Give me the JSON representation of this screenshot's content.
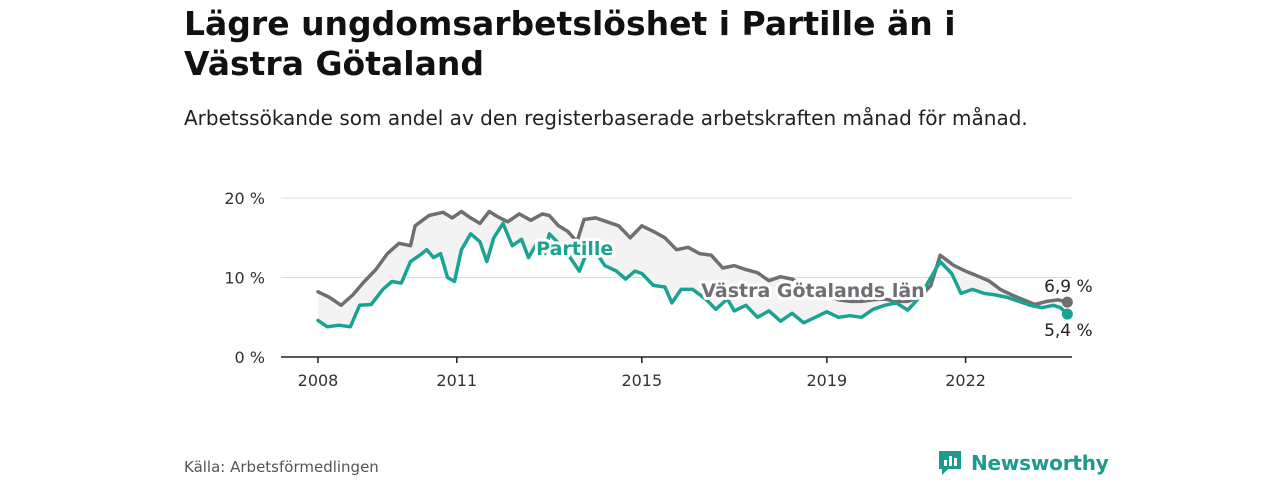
{
  "title": "Lägre ungdomsarbetslöshet i Partille än i Västra Götaland",
  "subtitle": "Arbetssökande som andel av den registerbaserade arbetskraften månad för månad.",
  "source": "Källa: Arbetsförmedlingen",
  "brand": {
    "name": "Newsworthy",
    "icon": "newsworthy-logo-icon",
    "color": "#1c9a8c"
  },
  "chart_data": {
    "type": "line",
    "ylim": [
      0,
      20
    ],
    "yticks": [
      0,
      10,
      20
    ],
    "ytick_labels": [
      "0 %",
      "10 %",
      "20 %"
    ],
    "xlim": [
      2007.2,
      2024.3
    ],
    "xticks": [
      2008,
      2011,
      2015,
      2019,
      2022
    ],
    "xtick_labels": [
      "2008",
      "2011",
      "2015",
      "2019",
      "2022"
    ],
    "series": [
      {
        "name": "Västra Götalands län",
        "color": "#6e6e73",
        "end_label": "6,9 %",
        "points": [
          [
            2008.0,
            8.2
          ],
          [
            2008.25,
            7.5
          ],
          [
            2008.5,
            6.5
          ],
          [
            2008.75,
            7.8
          ],
          [
            2009.0,
            9.5
          ],
          [
            2009.25,
            11.0
          ],
          [
            2009.5,
            13.0
          ],
          [
            2009.75,
            14.3
          ],
          [
            2010.0,
            14.0
          ],
          [
            2010.1,
            16.5
          ],
          [
            2010.4,
            17.8
          ],
          [
            2010.7,
            18.2
          ],
          [
            2010.9,
            17.5
          ],
          [
            2011.1,
            18.3
          ],
          [
            2011.3,
            17.5
          ],
          [
            2011.5,
            16.8
          ],
          [
            2011.7,
            18.3
          ],
          [
            2011.9,
            17.6
          ],
          [
            2012.1,
            17.0
          ],
          [
            2012.35,
            18.0
          ],
          [
            2012.6,
            17.2
          ],
          [
            2012.85,
            18.0
          ],
          [
            2013.0,
            17.8
          ],
          [
            2013.2,
            16.5
          ],
          [
            2013.4,
            15.8
          ],
          [
            2013.6,
            14.5
          ],
          [
            2013.75,
            17.3
          ],
          [
            2014.0,
            17.5
          ],
          [
            2014.25,
            17.0
          ],
          [
            2014.5,
            16.5
          ],
          [
            2014.75,
            15.0
          ],
          [
            2015.0,
            16.5
          ],
          [
            2015.25,
            15.8
          ],
          [
            2015.5,
            15.0
          ],
          [
            2015.75,
            13.5
          ],
          [
            2016.0,
            13.8
          ],
          [
            2016.25,
            13.0
          ],
          [
            2016.5,
            12.8
          ],
          [
            2016.75,
            11.2
          ],
          [
            2017.0,
            11.5
          ],
          [
            2017.25,
            11.0
          ],
          [
            2017.5,
            10.6
          ],
          [
            2017.75,
            9.6
          ],
          [
            2018.0,
            10.1
          ],
          [
            2018.25,
            9.8
          ],
          [
            2018.5,
            9.0
          ],
          [
            2018.75,
            8.5
          ],
          [
            2019.0,
            8.0
          ],
          [
            2019.25,
            7.2
          ],
          [
            2019.5,
            7.0
          ],
          [
            2019.75,
            7.0
          ],
          [
            2020.0,
            7.2
          ],
          [
            2020.25,
            7.3
          ],
          [
            2020.5,
            7.0
          ],
          [
            2020.75,
            7.0
          ],
          [
            2021.0,
            7.5
          ],
          [
            2021.25,
            9.0
          ],
          [
            2021.45,
            12.8
          ],
          [
            2021.75,
            11.5
          ],
          [
            2022.0,
            10.8
          ],
          [
            2022.25,
            10.2
          ],
          [
            2022.5,
            9.6
          ],
          [
            2022.75,
            8.5
          ],
          [
            2023.0,
            7.8
          ],
          [
            2023.25,
            7.2
          ],
          [
            2023.5,
            6.6
          ],
          [
            2023.75,
            7.0
          ],
          [
            2024.0,
            7.2
          ],
          [
            2024.2,
            6.9
          ]
        ]
      },
      {
        "name": "Partille",
        "color": "#1aa393",
        "end_label": "5,4 %",
        "points": [
          [
            2008.0,
            4.6
          ],
          [
            2008.2,
            3.8
          ],
          [
            2008.45,
            4.0
          ],
          [
            2008.7,
            3.8
          ],
          [
            2008.9,
            6.5
          ],
          [
            2009.15,
            6.6
          ],
          [
            2009.4,
            8.5
          ],
          [
            2009.6,
            9.5
          ],
          [
            2009.8,
            9.3
          ],
          [
            2010.0,
            12.0
          ],
          [
            2010.2,
            12.8
          ],
          [
            2010.35,
            13.5
          ],
          [
            2010.5,
            12.5
          ],
          [
            2010.65,
            13.0
          ],
          [
            2010.8,
            10.0
          ],
          [
            2010.95,
            9.5
          ],
          [
            2011.1,
            13.5
          ],
          [
            2011.3,
            15.5
          ],
          [
            2011.5,
            14.5
          ],
          [
            2011.65,
            12.0
          ],
          [
            2011.8,
            15.0
          ],
          [
            2012.0,
            16.8
          ],
          [
            2012.2,
            14.0
          ],
          [
            2012.4,
            14.8
          ],
          [
            2012.55,
            12.5
          ],
          [
            2012.75,
            14.5
          ],
          [
            2012.9,
            13.0
          ],
          [
            2013.0,
            15.5
          ],
          [
            2013.25,
            14.0
          ],
          [
            2013.45,
            12.5
          ],
          [
            2013.65,
            10.8
          ],
          [
            2013.8,
            13.0
          ],
          [
            2014.0,
            13.3
          ],
          [
            2014.2,
            11.5
          ],
          [
            2014.45,
            10.8
          ],
          [
            2014.65,
            9.8
          ],
          [
            2014.85,
            10.8
          ],
          [
            2015.0,
            10.5
          ],
          [
            2015.25,
            9.0
          ],
          [
            2015.5,
            8.8
          ],
          [
            2015.65,
            6.8
          ],
          [
            2015.85,
            8.5
          ],
          [
            2016.1,
            8.5
          ],
          [
            2016.4,
            7.2
          ],
          [
            2016.6,
            6.0
          ],
          [
            2016.85,
            7.3
          ],
          [
            2017.0,
            5.8
          ],
          [
            2017.25,
            6.5
          ],
          [
            2017.5,
            5.0
          ],
          [
            2017.75,
            5.8
          ],
          [
            2018.0,
            4.5
          ],
          [
            2018.25,
            5.5
          ],
          [
            2018.5,
            4.3
          ],
          [
            2018.75,
            5.0
          ],
          [
            2019.0,
            5.7
          ],
          [
            2019.25,
            5.0
          ],
          [
            2019.5,
            5.2
          ],
          [
            2019.75,
            5.0
          ],
          [
            2020.0,
            6.0
          ],
          [
            2020.25,
            6.5
          ],
          [
            2020.5,
            6.8
          ],
          [
            2020.75,
            5.9
          ],
          [
            2021.0,
            7.5
          ],
          [
            2021.25,
            10.0
          ],
          [
            2021.45,
            12.0
          ],
          [
            2021.7,
            10.5
          ],
          [
            2021.9,
            8.0
          ],
          [
            2022.15,
            8.5
          ],
          [
            2022.4,
            8.0
          ],
          [
            2022.65,
            7.8
          ],
          [
            2022.9,
            7.5
          ],
          [
            2023.15,
            7.0
          ],
          [
            2023.4,
            6.5
          ],
          [
            2023.65,
            6.2
          ],
          [
            2023.9,
            6.5
          ],
          [
            2024.05,
            6.2
          ],
          [
            2024.2,
            5.4
          ]
        ]
      }
    ],
    "annotations": [
      {
        "text": "Partille",
        "series": "Partille",
        "at": [
          2013.55,
          13.6
        ]
      },
      {
        "text": "Västra Götalands län",
        "series": "Västra Götalands län",
        "at": [
          2018.7,
          8.3
        ]
      }
    ]
  }
}
